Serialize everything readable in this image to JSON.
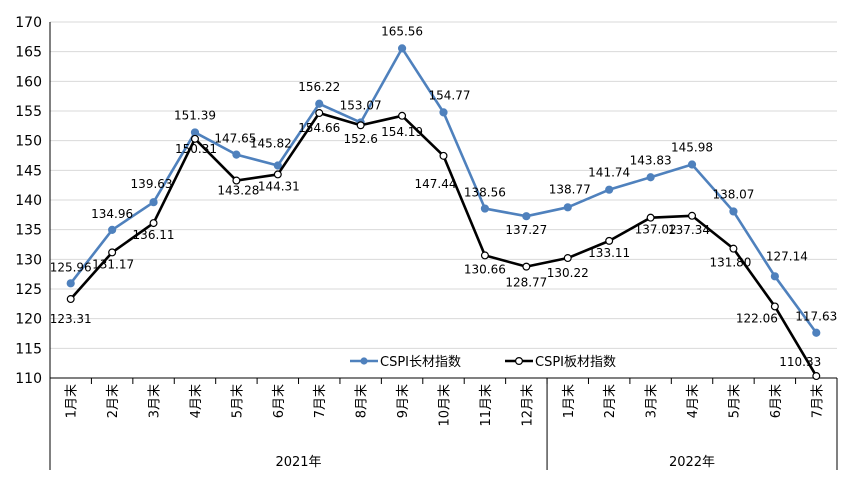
{
  "chart_data": {
    "type": "line",
    "title": "",
    "xlabel": "",
    "ylabel": "",
    "ylim": [
      110,
      170
    ],
    "yticks": [
      110,
      115,
      120,
      125,
      130,
      135,
      140,
      145,
      150,
      155,
      160,
      165,
      170
    ],
    "categories": [
      "1月末",
      "2月末",
      "3月末",
      "4月末",
      "5月末",
      "6月末",
      "7月末",
      "8月末",
      "9月末",
      "10月末",
      "11月末",
      "12月末",
      "1月末",
      "2月末",
      "3月末",
      "4月末",
      "5月末",
      "6月末",
      "7月末"
    ],
    "groups": [
      {
        "label": "2021年",
        "count": 12
      },
      {
        "label": "2022年",
        "count": 7
      }
    ],
    "series": [
      {
        "name": "CSPI长材指数",
        "color": "#4f81bd",
        "marker": "filled",
        "values": [
          125.96,
          134.96,
          139.63,
          151.39,
          147.65,
          145.82,
          156.22,
          153.07,
          165.56,
          154.77,
          138.56,
          137.27,
          138.77,
          141.74,
          143.83,
          145.98,
          138.07,
          127.14,
          117.63
        ],
        "labels": [
          "125.96",
          "134.96",
          "139.63",
          "151.39",
          "147.65",
          "145.82",
          "156.22",
          "153.07",
          "165.56",
          "154.77",
          "138.56",
          "137.27",
          "138.77",
          "141.74",
          "143.83",
          "145.98",
          "138.07",
          "127.14",
          "117.63"
        ]
      },
      {
        "name": "CSPI板材指数",
        "color": "#000000",
        "marker": "hollow",
        "values": [
          123.31,
          131.17,
          136.11,
          150.31,
          143.28,
          144.31,
          154.66,
          152.6,
          154.19,
          147.44,
          130.66,
          128.77,
          130.22,
          133.11,
          137.02,
          137.34,
          131.8,
          122.06,
          110.33
        ],
        "labels": [
          "123.31",
          "131.17",
          "136.11",
          "150.31",
          "143.28",
          "144.31",
          "154.66",
          "152.6",
          "154.19",
          "147.44",
          "130.66",
          "128.77",
          "130.22",
          "133.11",
          "137.02",
          "137.34",
          "131.80",
          "122.06",
          "110.33"
        ]
      }
    ],
    "legend_position": "bottom-center",
    "grid": true
  }
}
